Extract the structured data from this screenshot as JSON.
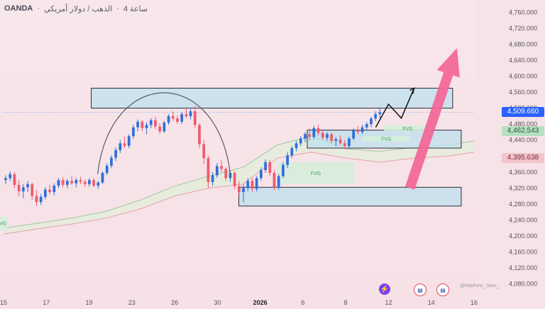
{
  "header": {
    "broker": "OANDA",
    "symbol": "الذهب / دولار أمريكي",
    "interval": "4 ساعة"
  },
  "price_tags": [
    {
      "label": "4,509.660",
      "value": 4509.66,
      "bg": "#2962ff",
      "fg": "#ffffff"
    },
    {
      "label": "4,462.543",
      "value": 4462.543,
      "bg": "#b9dfc2",
      "fg": "#1f5f2f"
    },
    {
      "label": "4,395.638",
      "value": 4395.638,
      "bg": "#f2c4cc",
      "fg": "#7a2a35"
    }
  ],
  "watermark": "@Nephew_Sam_",
  "icons": [
    "lightning-icon",
    "us-flag-icon",
    "us-flag-icon"
  ],
  "colors": {
    "up": "#2f6fd6",
    "down": "#ee5c6e",
    "zone": "#bde0ec",
    "fvg": "#d5efdb",
    "arrow": "#f36596"
  },
  "chart_data": {
    "type": "candlestick",
    "title": "",
    "y_axis": {
      "ylim": [
        4060,
        4780
      ],
      "tick_values": [
        4080,
        4120,
        4160,
        4200,
        4240,
        4280,
        4320,
        4360,
        4400,
        4440,
        4480,
        4520,
        4560,
        4600,
        4640,
        4680,
        4720,
        4760
      ],
      "tick_labels": [
        "4,080.000",
        "4,120.000",
        "4,160.000",
        "4,200.000",
        "4,240.000",
        "4,280.000",
        "4,320.000",
        "4,360.000",
        "4,400.000",
        "4,440.000",
        "4,480.000",
        "4,520.000",
        "4,560.000",
        "4,600.000",
        "4,640.000",
        "4,680.000",
        "4,720.000",
        "4,760.000"
      ]
    },
    "x_axis": {
      "range": [
        0,
        110
      ],
      "ticks": [
        {
          "label": "15",
          "at": 0
        },
        {
          "label": "17",
          "at": 10
        },
        {
          "label": "19",
          "at": 20
        },
        {
          "label": "23",
          "at": 30
        },
        {
          "label": "26",
          "at": 40
        },
        {
          "label": "30",
          "at": 50
        },
        {
          "label": "2026",
          "at": 60
        },
        {
          "label": "6",
          "at": 70
        },
        {
          "label": "8",
          "at": 80
        },
        {
          "label": "12",
          "at": 90
        },
        {
          "label": "14",
          "at": 100
        },
        {
          "label": "16",
          "at": 110
        }
      ]
    },
    "candles_ohlc": [
      [
        4340,
        4352,
        4330,
        4345
      ],
      [
        4345,
        4362,
        4338,
        4355
      ],
      [
        4355,
        4360,
        4320,
        4328
      ],
      [
        4328,
        4340,
        4300,
        4312
      ],
      [
        4312,
        4330,
        4295,
        4322
      ],
      [
        4322,
        4338,
        4310,
        4330
      ],
      [
        4330,
        4333,
        4290,
        4300
      ],
      [
        4300,
        4315,
        4275,
        4285
      ],
      [
        4285,
        4305,
        4278,
        4298
      ],
      [
        4298,
        4322,
        4292,
        4316
      ],
      [
        4316,
        4328,
        4305,
        4310
      ],
      [
        4310,
        4332,
        4302,
        4326
      ],
      [
        4326,
        4345,
        4320,
        4340
      ],
      [
        4340,
        4348,
        4322,
        4328
      ],
      [
        4328,
        4343,
        4320,
        4338
      ],
      [
        4338,
        4350,
        4328,
        4332
      ],
      [
        4332,
        4345,
        4322,
        4340
      ],
      [
        4340,
        4348,
        4330,
        4336
      ],
      [
        4336,
        4342,
        4322,
        4330
      ],
      [
        4330,
        4345,
        4324,
        4340
      ],
      [
        4340,
        4345,
        4322,
        4326
      ],
      [
        4326,
        4338,
        4318,
        4334
      ],
      [
        4334,
        4362,
        4330,
        4358
      ],
      [
        4358,
        4382,
        4352,
        4376
      ],
      [
        4376,
        4402,
        4370,
        4396
      ],
      [
        4396,
        4422,
        4388,
        4415
      ],
      [
        4415,
        4440,
        4408,
        4432
      ],
      [
        4432,
        4448,
        4420,
        4426
      ],
      [
        4426,
        4455,
        4420,
        4450
      ],
      [
        4450,
        4478,
        4444,
        4472
      ],
      [
        4472,
        4492,
        4462,
        4486
      ],
      [
        4486,
        4490,
        4462,
        4470
      ],
      [
        4470,
        4485,
        4455,
        4478
      ],
      [
        4478,
        4495,
        4470,
        4490
      ],
      [
        4490,
        4498,
        4468,
        4474
      ],
      [
        4474,
        4482,
        4455,
        4462
      ],
      [
        4462,
        4488,
        4458,
        4484
      ],
      [
        4484,
        4505,
        4478,
        4500
      ],
      [
        4500,
        4512,
        4488,
        4494
      ],
      [
        4494,
        4502,
        4480,
        4486
      ],
      [
        4486,
        4510,
        4480,
        4505
      ],
      [
        4505,
        4520,
        4495,
        4500
      ],
      [
        4500,
        4518,
        4492,
        4512
      ],
      [
        4512,
        4525,
        4470,
        4478
      ],
      [
        4478,
        4482,
        4420,
        4430
      ],
      [
        4430,
        4440,
        4380,
        4395
      ],
      [
        4395,
        4402,
        4320,
        4335
      ],
      [
        4335,
        4360,
        4325,
        4352
      ],
      [
        4352,
        4382,
        4346,
        4375
      ],
      [
        4375,
        4390,
        4360,
        4368
      ],
      [
        4368,
        4372,
        4338,
        4345
      ],
      [
        4345,
        4365,
        4335,
        4358
      ],
      [
        4358,
        4362,
        4318,
        4325
      ],
      [
        4325,
        4338,
        4300,
        4310
      ],
      [
        4310,
        4330,
        4285,
        4320
      ],
      [
        4320,
        4345,
        4312,
        4338
      ],
      [
        4338,
        4345,
        4310,
        4318
      ],
      [
        4318,
        4350,
        4312,
        4345
      ],
      [
        4345,
        4372,
        4338,
        4365
      ],
      [
        4365,
        4392,
        4358,
        4385
      ],
      [
        4385,
        4390,
        4350,
        4358
      ],
      [
        4358,
        4365,
        4315,
        4322
      ],
      [
        4322,
        4355,
        4316,
        4350
      ],
      [
        4350,
        4385,
        4345,
        4378
      ],
      [
        4378,
        4410,
        4370,
        4402
      ],
      [
        4402,
        4425,
        4395,
        4420
      ],
      [
        4420,
        4438,
        4412,
        4432
      ],
      [
        4432,
        4450,
        4425,
        4444
      ],
      [
        4444,
        4460,
        4435,
        4455
      ],
      [
        4455,
        4470,
        4440,
        4448
      ],
      [
        4448,
        4476,
        4442,
        4470
      ],
      [
        4470,
        4478,
        4452,
        4458
      ],
      [
        4458,
        4465,
        4440,
        4446
      ],
      [
        4446,
        4460,
        4438,
        4455
      ],
      [
        4455,
        4458,
        4432,
        4438
      ],
      [
        4438,
        4448,
        4425,
        4442
      ],
      [
        4442,
        4452,
        4428,
        4432
      ],
      [
        4432,
        4440,
        4418,
        4425
      ],
      [
        4425,
        4448,
        4420,
        4444
      ],
      [
        4444,
        4470,
        4440,
        4465
      ],
      [
        4465,
        4475,
        4455,
        4460
      ],
      [
        4460,
        4478,
        4455,
        4472
      ],
      [
        4472,
        4485,
        4465,
        4480
      ],
      [
        4480,
        4498,
        4472,
        4494
      ],
      [
        4494,
        4512,
        4488,
        4505
      ],
      [
        4505,
        4520,
        4495,
        4510
      ]
    ],
    "zones": [
      {
        "type": "supply",
        "x": [
          20.5,
          105
        ],
        "y": [
          4520,
          4570
        ]
      },
      {
        "type": "demand",
        "x": [
          71,
          107
        ],
        "y": [
          4420,
          4465
        ]
      },
      {
        "type": "demand",
        "x": [
          55,
          107
        ],
        "y": [
          4275,
          4322
        ]
      }
    ],
    "fvg_zones": [
      {
        "label": "FVG",
        "x": [
          64,
          82
        ],
        "y": [
          4330,
          4385
        ]
      },
      {
        "label": "FVG",
        "x": [
          84,
          95
        ],
        "y": [
          4437,
          4450
        ]
      },
      {
        "label": "FVG",
        "x": [
          89,
          100
        ],
        "y": [
          4462,
          4478
        ]
      },
      {
        "label": "FVG",
        "x": [
          -2,
          1
        ],
        "y": [
          4215,
          4250
        ]
      }
    ],
    "cloud": {
      "x": [
        0,
        8,
        16,
        24,
        32,
        40,
        48,
        56,
        64,
        72,
        80,
        88,
        96,
        104,
        110
      ],
      "upper": [
        4220,
        4232,
        4245,
        4262,
        4290,
        4325,
        4350,
        4372,
        4428,
        4450,
        4418,
        4412,
        4422,
        4428,
        4438
      ],
      "lower": [
        4205,
        4218,
        4230,
        4245,
        4268,
        4300,
        4320,
        4330,
        4395,
        4410,
        4395,
        4385,
        4395,
        4400,
        4410
      ]
    },
    "arc": {
      "x": [
        22,
        53
      ],
      "y": [
        4355,
        4520
      ]
    },
    "path_arrow": [
      [
        87,
        4472
      ],
      [
        90,
        4530
      ],
      [
        93,
        4495
      ],
      [
        96,
        4570
      ]
    ],
    "big_arrow": {
      "from": [
        95,
        4320
      ],
      "to": [
        106,
        4670
      ]
    },
    "dotted_level": 4509.66
  }
}
